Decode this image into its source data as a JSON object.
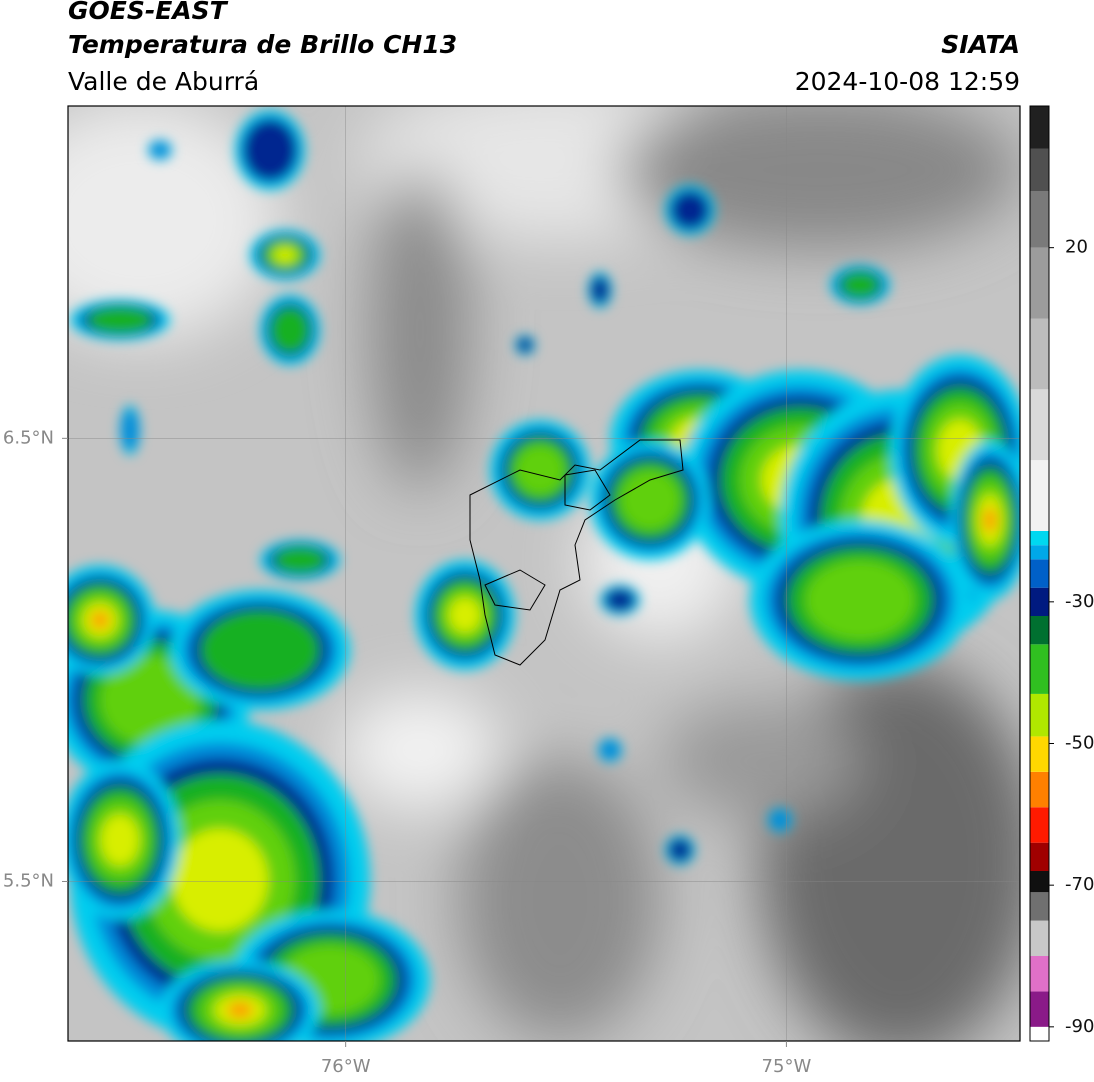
{
  "header": {
    "title": "GOES-EAST",
    "subtitle": "Temperatura de Brillo CH13",
    "region": "Valle de Aburrá",
    "source": "SIATA",
    "timestamp": "2024-10-08 12:59"
  },
  "map": {
    "xlim": [
      -76.63,
      -74.47
    ],
    "ylim": [
      5.14,
      7.25
    ],
    "xticks": [
      {
        "value": -76,
        "label": "76°W"
      },
      {
        "value": -75,
        "label": "75°W"
      }
    ],
    "yticks": [
      {
        "value": 6.5,
        "label": "6.5°N"
      },
      {
        "value": 5.5,
        "label": "5.5°N"
      }
    ],
    "grid": true
  },
  "colorbar": {
    "lim": [
      -92,
      40
    ],
    "ticks": [
      20,
      -30,
      -50,
      -70,
      -90
    ],
    "bands": [
      {
        "from": -92,
        "color": "#ffffff"
      },
      {
        "from": -90,
        "color": "#8a1a88"
      },
      {
        "from": -85,
        "color": "#e070c8"
      },
      {
        "from": -80,
        "color": "#c8c8c8"
      },
      {
        "from": -75,
        "color": "#707070"
      },
      {
        "from": -71,
        "color": "#101010"
      },
      {
        "from": -68,
        "color": "#a00000"
      },
      {
        "from": -64,
        "color": "#ff1a00"
      },
      {
        "from": -59,
        "color": "#ff8000"
      },
      {
        "from": -54,
        "color": "#ffd800"
      },
      {
        "from": -49,
        "color": "#b0e800"
      },
      {
        "from": -43,
        "color": "#30c020"
      },
      {
        "from": -36,
        "color": "#007030"
      },
      {
        "from": -32,
        "color": "#001a80"
      },
      {
        "from": -28,
        "color": "#0060c8"
      },
      {
        "from": -24,
        "color": "#00a8e8"
      },
      {
        "from": -22,
        "color": "#00d8f0"
      },
      {
        "from": -20,
        "color": "#f2f2f2"
      },
      {
        "from": -10,
        "color": "#dadada"
      },
      {
        "from": 0,
        "color": "#bcbcbc"
      },
      {
        "from": 10,
        "color": "#9c9c9c"
      },
      {
        "from": 20,
        "color": "#7a7a7a"
      },
      {
        "from": 28,
        "color": "#505050"
      },
      {
        "from": 34,
        "color": "#202020"
      }
    ]
  }
}
